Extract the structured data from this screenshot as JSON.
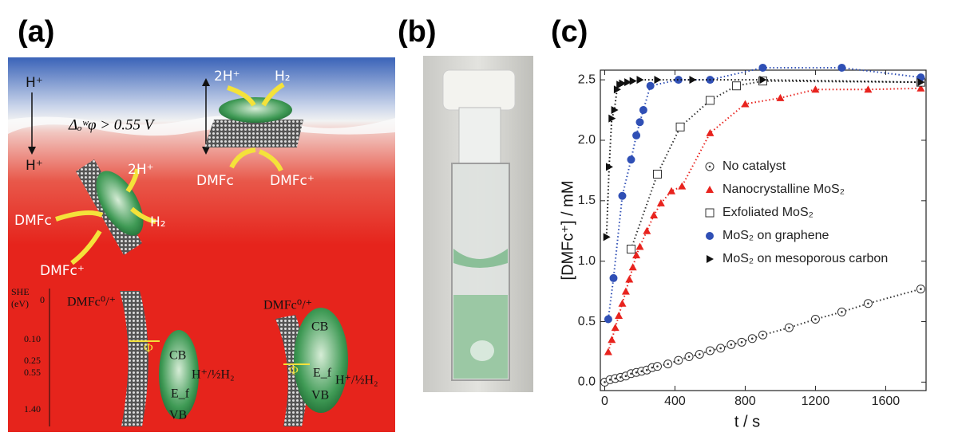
{
  "panel_labels": [
    "(a)",
    "(b)",
    "(c)"
  ],
  "panel_a": {
    "top_ion": "H⁺",
    "bottom_ion": "H⁺",
    "potential": "Δₒʷφ > 0.55 V",
    "right_2h": "2H⁺",
    "right_h2": "H₂",
    "right_dmfc": "DMFc",
    "right_dmfc_plus": "DMFc⁺",
    "left_2h": "2H⁺",
    "left_dmfc": "DMFc",
    "left_h2": "H₂",
    "left_dmfc_plus": "DMFc⁺",
    "energy_axis": [
      "SHE",
      "(eV)"
    ],
    "energy_levels": [
      "0",
      "0.10",
      "0.25",
      "0.55",
      "1.40"
    ],
    "band_left": {
      "couple": "DMFc⁰/⁺",
      "phi": "Φ",
      "cb": "CB",
      "ef": "E_f",
      "vb": "VB",
      "redox": "H⁺/½H₂"
    },
    "band_right": {
      "couple": "DMFc⁰/⁺",
      "phi": "Φ",
      "cb": "CB",
      "ef": "E_f",
      "vb": "VB",
      "redox": "H⁺/½H₂"
    }
  },
  "chart_data": {
    "type": "scatter",
    "xlabel": "t / s",
    "ylabel": "[DMFc⁺] / mM",
    "xlim": [
      -25,
      1830
    ],
    "ylim": [
      -0.07,
      2.58
    ],
    "xticks": [
      0,
      400,
      800,
      1200,
      1600
    ],
    "yticks": [
      {
        "value": 0,
        "label": "0.0"
      },
      0.5,
      {
        "value": 1,
        "label": "1.0"
      },
      1.5,
      {
        "value": 2,
        "label": "2.0"
      },
      2.5
    ],
    "series": [
      {
        "name": "No catalyst",
        "color": "#333333",
        "marker": "circle-dot",
        "x": [
          0,
          30,
          60,
          90,
          120,
          150,
          180,
          210,
          240,
          270,
          300,
          360,
          420,
          480,
          540,
          600,
          660,
          720,
          780,
          840,
          900,
          1050,
          1200,
          1350,
          1500,
          1800
        ],
        "values": [
          0.0,
          0.02,
          0.03,
          0.04,
          0.05,
          0.07,
          0.08,
          0.09,
          0.1,
          0.12,
          0.13,
          0.15,
          0.18,
          0.21,
          0.23,
          0.26,
          0.28,
          0.31,
          0.33,
          0.36,
          0.39,
          0.45,
          0.52,
          0.58,
          0.65,
          0.77
        ]
      },
      {
        "name": "Nanocrystalline MoS₂",
        "color": "#e8231e",
        "marker": "triangle",
        "x": [
          20,
          40,
          60,
          80,
          100,
          120,
          140,
          160,
          180,
          200,
          240,
          280,
          320,
          380,
          440,
          600,
          800,
          1000,
          1200,
          1500,
          1800
        ],
        "values": [
          0.25,
          0.35,
          0.45,
          0.55,
          0.65,
          0.75,
          0.85,
          0.95,
          1.05,
          1.12,
          1.25,
          1.38,
          1.48,
          1.58,
          1.62,
          2.06,
          2.3,
          2.35,
          2.42,
          2.42,
          2.43
        ]
      },
      {
        "name": "Exfoliated MoS₂",
        "color": "#333333",
        "marker": "square-open",
        "x": [
          150,
          300,
          430,
          600,
          750,
          900,
          1800
        ],
        "values": [
          1.1,
          1.72,
          2.11,
          2.33,
          2.45,
          2.49,
          2.48
        ]
      },
      {
        "name": "MoS₂ on graphene",
        "color": "#2f4fb5",
        "marker": "circle",
        "x": [
          20,
          50,
          100,
          150,
          180,
          200,
          220,
          260,
          420,
          600,
          900,
          1350,
          1800
        ],
        "values": [
          0.52,
          0.86,
          1.54,
          1.84,
          2.04,
          2.15,
          2.25,
          2.45,
          2.5,
          2.5,
          2.6,
          2.6,
          2.52
        ]
      },
      {
        "name": "MoS₂ on mesoporous carbon",
        "color": "#111111",
        "marker": "triangle-right",
        "x": [
          10,
          25,
          40,
          55,
          70,
          85,
          100,
          130,
          160,
          200,
          300,
          500,
          900,
          1800
        ],
        "values": [
          1.2,
          1.78,
          2.18,
          2.25,
          2.42,
          2.46,
          2.47,
          2.48,
          2.49,
          2.5,
          2.5,
          2.5,
          2.5,
          2.48
        ]
      }
    ]
  }
}
